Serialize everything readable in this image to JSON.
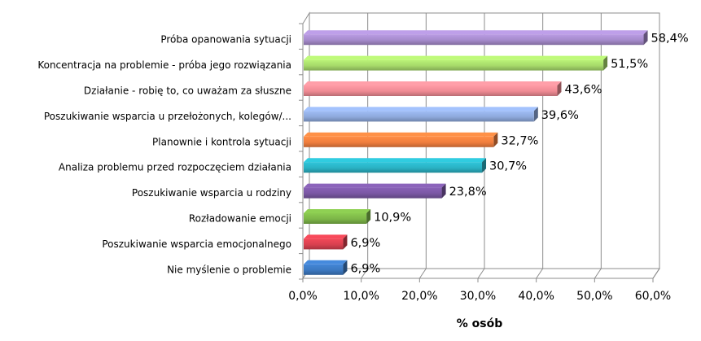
{
  "chart_data": {
    "type": "bar",
    "orientation": "horizontal",
    "style": "3d",
    "categories": [
      "Próba opanowania sytuacji",
      "Koncentracja na problemie - próba jego rozwiązania",
      "Działanie - robię to, co uważam za słuszne",
      "Poszukiwanie wsparcia u przełożonych, kolegów/...",
      "Planownie i kontrola sytuacji",
      "Analiza problemu przed rozpoczęciem działania",
      "Poszukiwanie wsparcia u rodziny",
      "Rozładowanie emocji",
      "Poszukiwanie wsparcia emocjonalnego",
      "Nie myślenie o problemie"
    ],
    "values": [
      58.4,
      51.5,
      43.6,
      39.6,
      32.7,
      30.7,
      23.8,
      10.9,
      6.9,
      6.9
    ],
    "value_labels": [
      "58,4%",
      "51,5%",
      "43,6%",
      "39,6%",
      "32,7%",
      "30,7%",
      "23,8%",
      "10,9%",
      "6,9%",
      "6,9%"
    ],
    "colors": [
      "#A58ACB",
      "#A6D96A",
      "#EE8A93",
      "#8EA9DC",
      "#F07E3E",
      "#2AB1C3",
      "#7A57A3",
      "#7CB548",
      "#D8404F",
      "#3C78C0"
    ],
    "xlabel": "% osób",
    "xticks": [
      "0,0%",
      "10,0%",
      "20,0%",
      "30,0%",
      "40,0%",
      "50,0%",
      "60,0%"
    ],
    "xlim": [
      0,
      60
    ],
    "grid": true,
    "legend": "none"
  }
}
